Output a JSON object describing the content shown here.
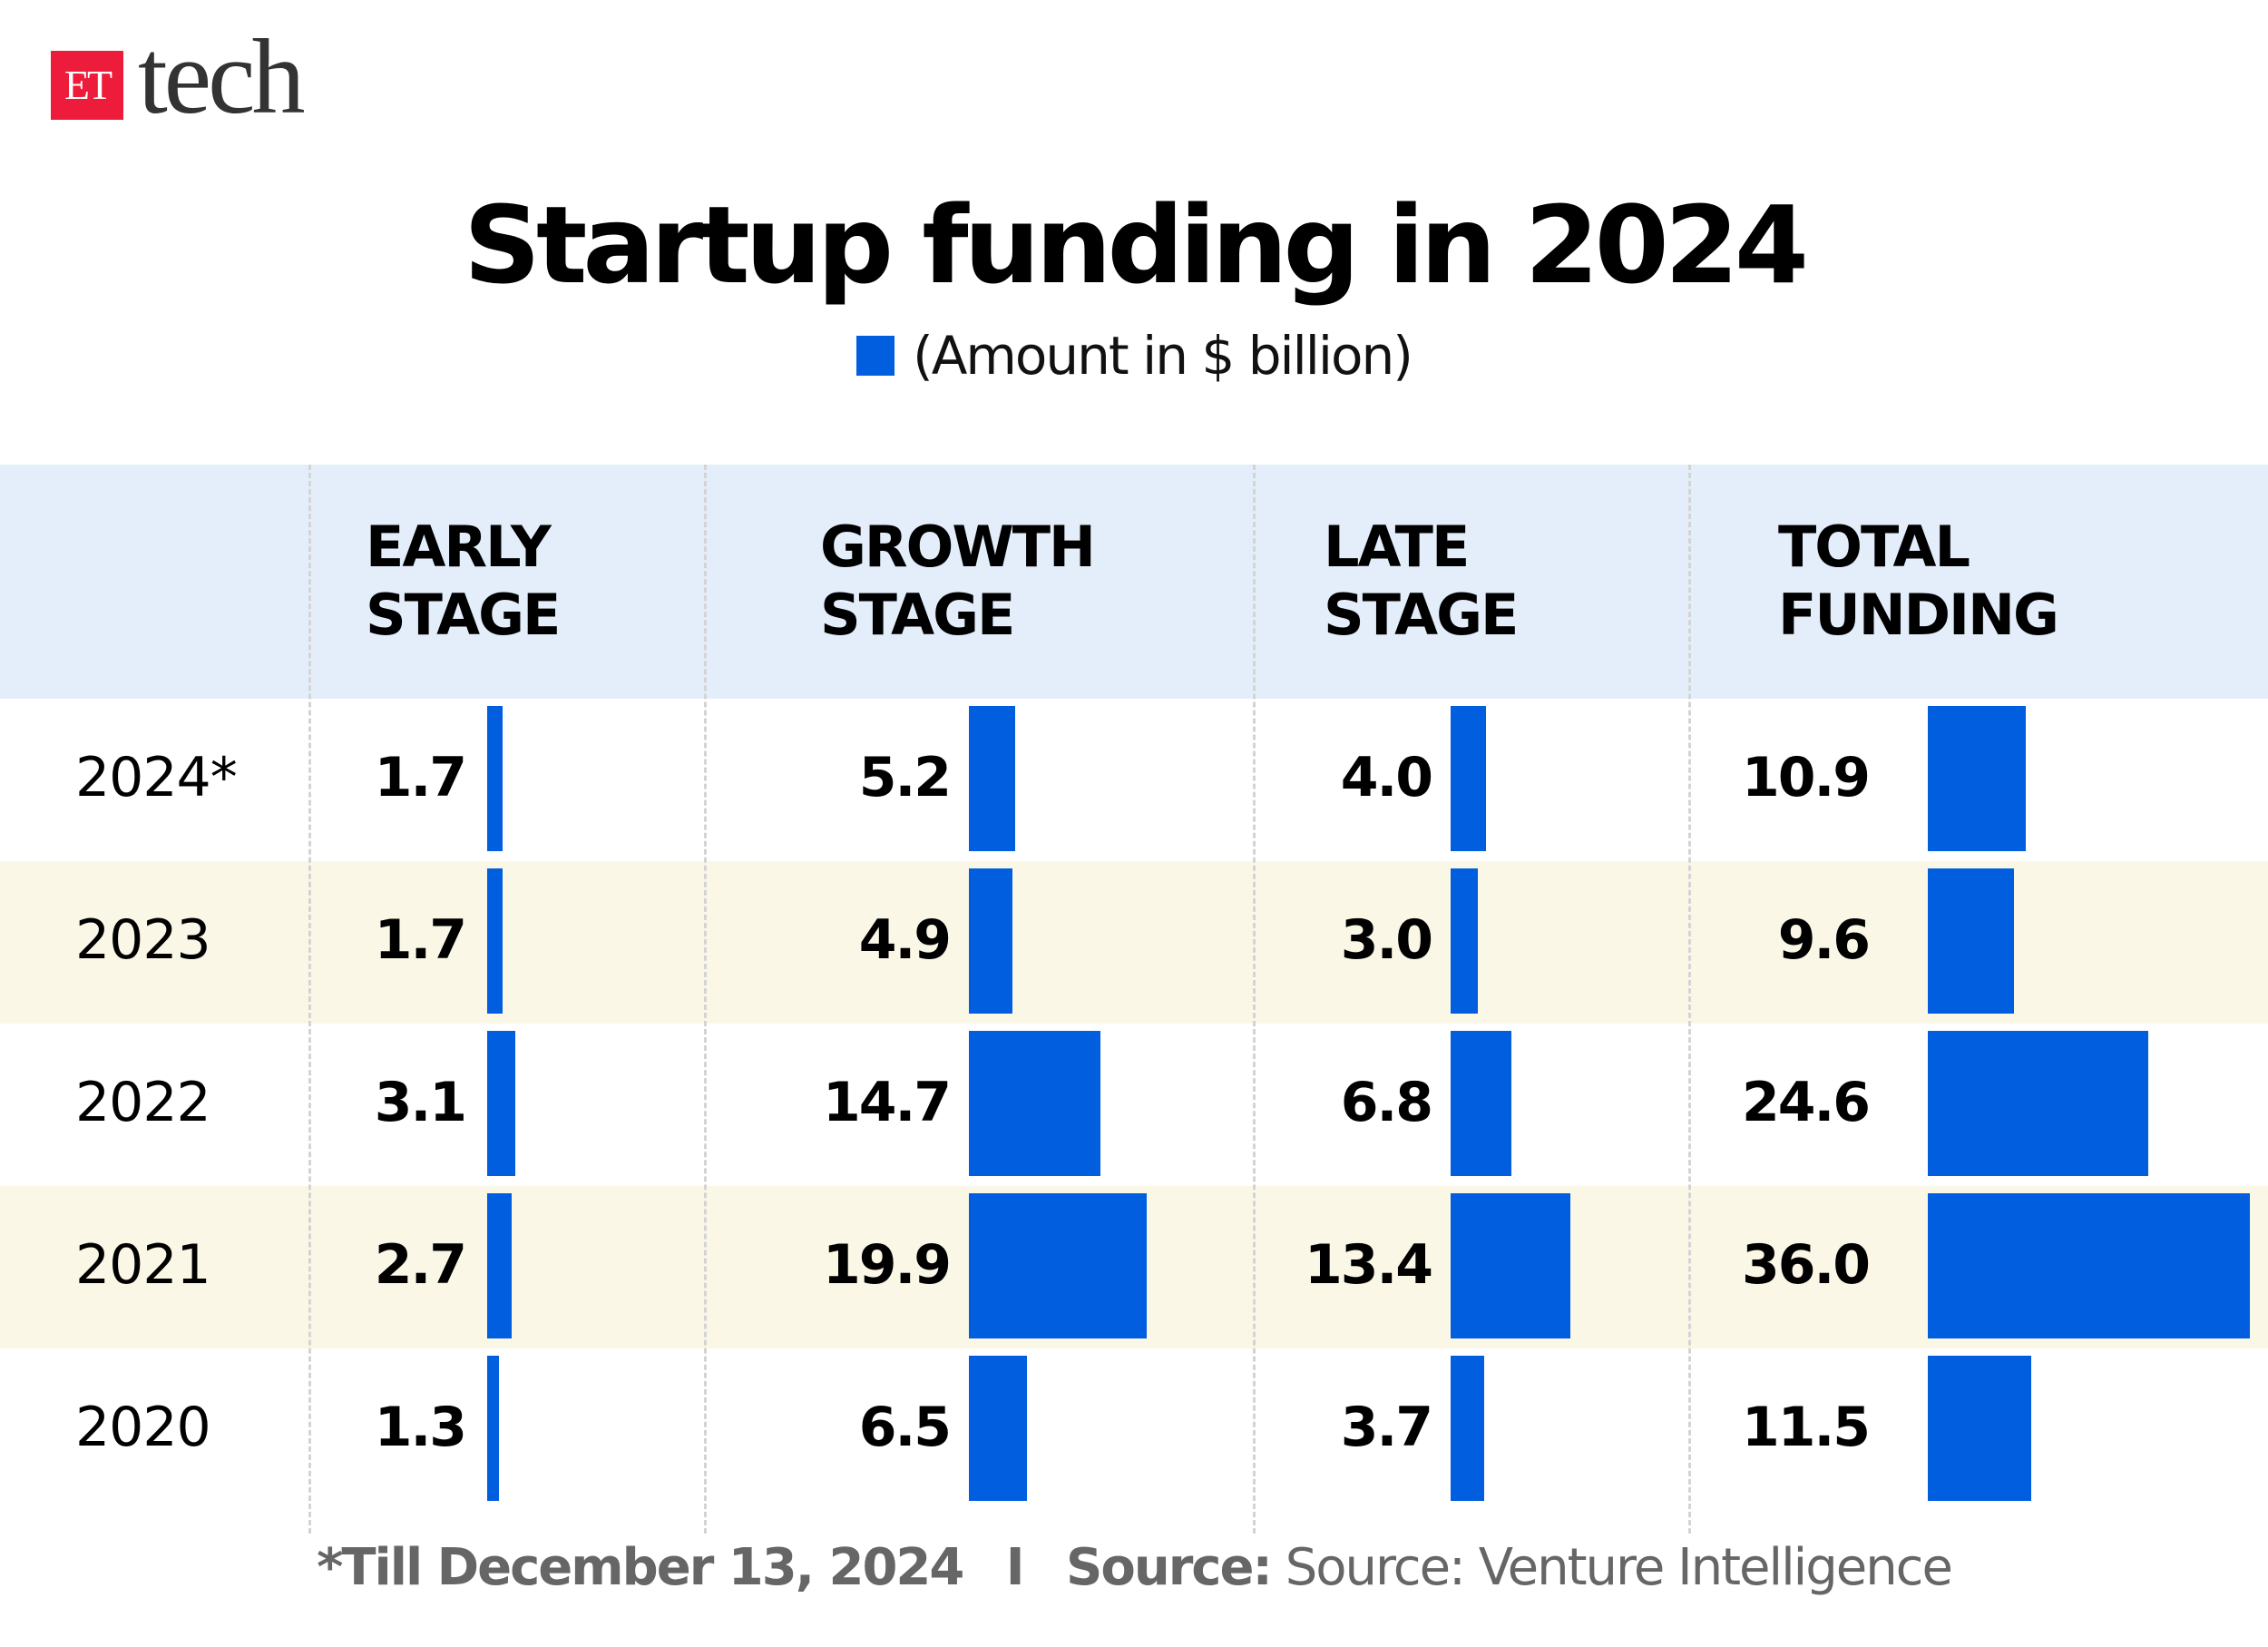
{
  "logo": {
    "mark": "ET",
    "text": "tech"
  },
  "title": "Startup funding in 2024",
  "legend": {
    "label": "(Amount in $ billion)",
    "color": "#005EDF"
  },
  "colors": {
    "bar": "#005EDF",
    "header_bg": "#E3EEFA",
    "alt_row_bg": "#FBF7E6"
  },
  "columns": [
    {
      "line1": "EARLY",
      "line2": "STAGE"
    },
    {
      "line1": "GROWTH",
      "line2": "STAGE"
    },
    {
      "line1": "LATE",
      "line2": "STAGE"
    },
    {
      "line1": "TOTAL",
      "line2": "FUNDING"
    }
  ],
  "chart_data": {
    "type": "bar",
    "orientation": "horizontal",
    "title": "Startup funding in 2024",
    "unit": "(Amount in $ billion)",
    "categories": [
      "2024*",
      "2023",
      "2022",
      "2021",
      "2020"
    ],
    "series": [
      {
        "name": "EARLY STAGE",
        "values": [
          "1.7",
          "1.7",
          "3.1",
          "2.7",
          "1.3"
        ]
      },
      {
        "name": "GROWTH STAGE",
        "values": [
          "5.2",
          "4.9",
          "14.7",
          "19.9",
          "6.5"
        ]
      },
      {
        "name": "LATE STAGE",
        "values": [
          "4.0",
          "3.0",
          "6.8",
          "13.4",
          "3.7"
        ]
      },
      {
        "name": "TOTAL FUNDING",
        "values": [
          "10.9",
          "9.6",
          "24.6",
          "36.0",
          "11.5"
        ]
      }
    ],
    "grid": false,
    "legend": "top-center"
  },
  "footer": {
    "note": "*Till December 13, 2024",
    "separator": "I",
    "source_label": "Source:",
    "source_text": "Source: Venture Intelligence"
  }
}
